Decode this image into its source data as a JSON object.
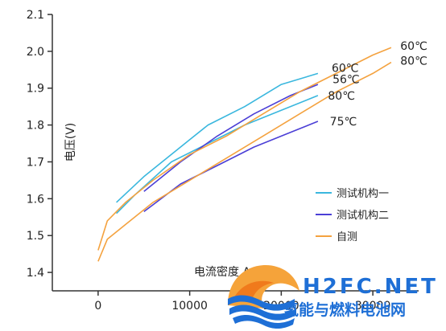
{
  "chart_data": {
    "type": "line",
    "xlabel": "电流密度 A/m²",
    "ylabel": "电压(V)",
    "xlim": [
      -5000,
      35000
    ],
    "ylim": [
      1.35,
      2.1
    ],
    "x_ticks": [
      0,
      10000,
      20000,
      30000
    ],
    "x_tick_labels": [
      "0",
      "10000",
      "20000",
      "30000"
    ],
    "y_ticks": [
      1.4,
      1.5,
      1.6,
      1.7,
      1.8,
      1.9,
      2.0,
      2.1
    ],
    "y_tick_labels": [
      "1.4",
      "1.5",
      "1.6",
      "1.7",
      "1.8",
      "1.9",
      "2.0",
      "2.1"
    ],
    "legend": {
      "position": "lower-right"
    },
    "grid": false,
    "series": [
      {
        "name": "测试机构一",
        "label": "60℃",
        "color": "#3ab7de",
        "x": [
          2000,
          5000,
          10000,
          12000,
          16000,
          20000,
          24000
        ],
        "y": [
          1.59,
          1.66,
          1.76,
          1.8,
          1.85,
          1.91,
          1.94
        ]
      },
      {
        "name": "测试机构一",
        "label": "80℃",
        "color": "#3ab7de",
        "x": [
          2000,
          4000,
          8000,
          12000,
          16000,
          20000,
          24000
        ],
        "y": [
          1.56,
          1.61,
          1.7,
          1.75,
          1.8,
          1.84,
          1.88
        ]
      },
      {
        "name": "测试机构二",
        "label": "56℃",
        "color": "#4b3fd6",
        "x": [
          5000,
          9000,
          13000,
          17000,
          21000,
          24000
        ],
        "y": [
          1.62,
          1.7,
          1.77,
          1.83,
          1.88,
          1.91
        ]
      },
      {
        "name": "测试机构二",
        "label": "75℃",
        "color": "#4b3fd6",
        "x": [
          5000,
          9000,
          13000,
          17000,
          21000,
          24000
        ],
        "y": [
          1.565,
          1.64,
          1.69,
          1.74,
          1.78,
          1.81
        ]
      },
      {
        "name": "自测",
        "label": "60℃",
        "color": "#f4a23f",
        "x": [
          0,
          1000,
          3000,
          6000,
          10000,
          14000,
          18000,
          22000,
          26000,
          30000,
          32000
        ],
        "y": [
          1.46,
          1.54,
          1.59,
          1.65,
          1.72,
          1.77,
          1.83,
          1.89,
          1.94,
          1.99,
          2.01
        ]
      },
      {
        "name": "自测",
        "label": "80℃",
        "color": "#f4a23f",
        "x": [
          0,
          1000,
          3000,
          6000,
          10000,
          14000,
          18000,
          22000,
          26000,
          30000,
          32000
        ],
        "y": [
          1.43,
          1.49,
          1.53,
          1.59,
          1.65,
          1.71,
          1.77,
          1.83,
          1.89,
          1.94,
          1.97
        ]
      }
    ],
    "series_labels": [
      {
        "text": "60℃",
        "x": 25500,
        "y": 1.955
      },
      {
        "text": "56℃",
        "x": 25600,
        "y": 1.925
      },
      {
        "text": "80℃",
        "x": 25100,
        "y": 1.88
      },
      {
        "text": "75℃",
        "x": 25300,
        "y": 1.81
      },
      {
        "text": "60℃",
        "x": 33000,
        "y": 2.015
      },
      {
        "text": "80℃",
        "x": 33000,
        "y": 1.975
      }
    ],
    "legend_entries": [
      {
        "label": "测试机构一",
        "color": "#3ab7de"
      },
      {
        "label": "测试机构二",
        "color": "#4b3fd6"
      },
      {
        "label": "自测",
        "color": "#f4a23f"
      }
    ]
  },
  "watermark": {
    "brand": "H2FC.NET",
    "subtitle": "氢能与燃料电池网",
    "brand_color": "#1e6fd6",
    "accent_color": "#f07a1c"
  }
}
